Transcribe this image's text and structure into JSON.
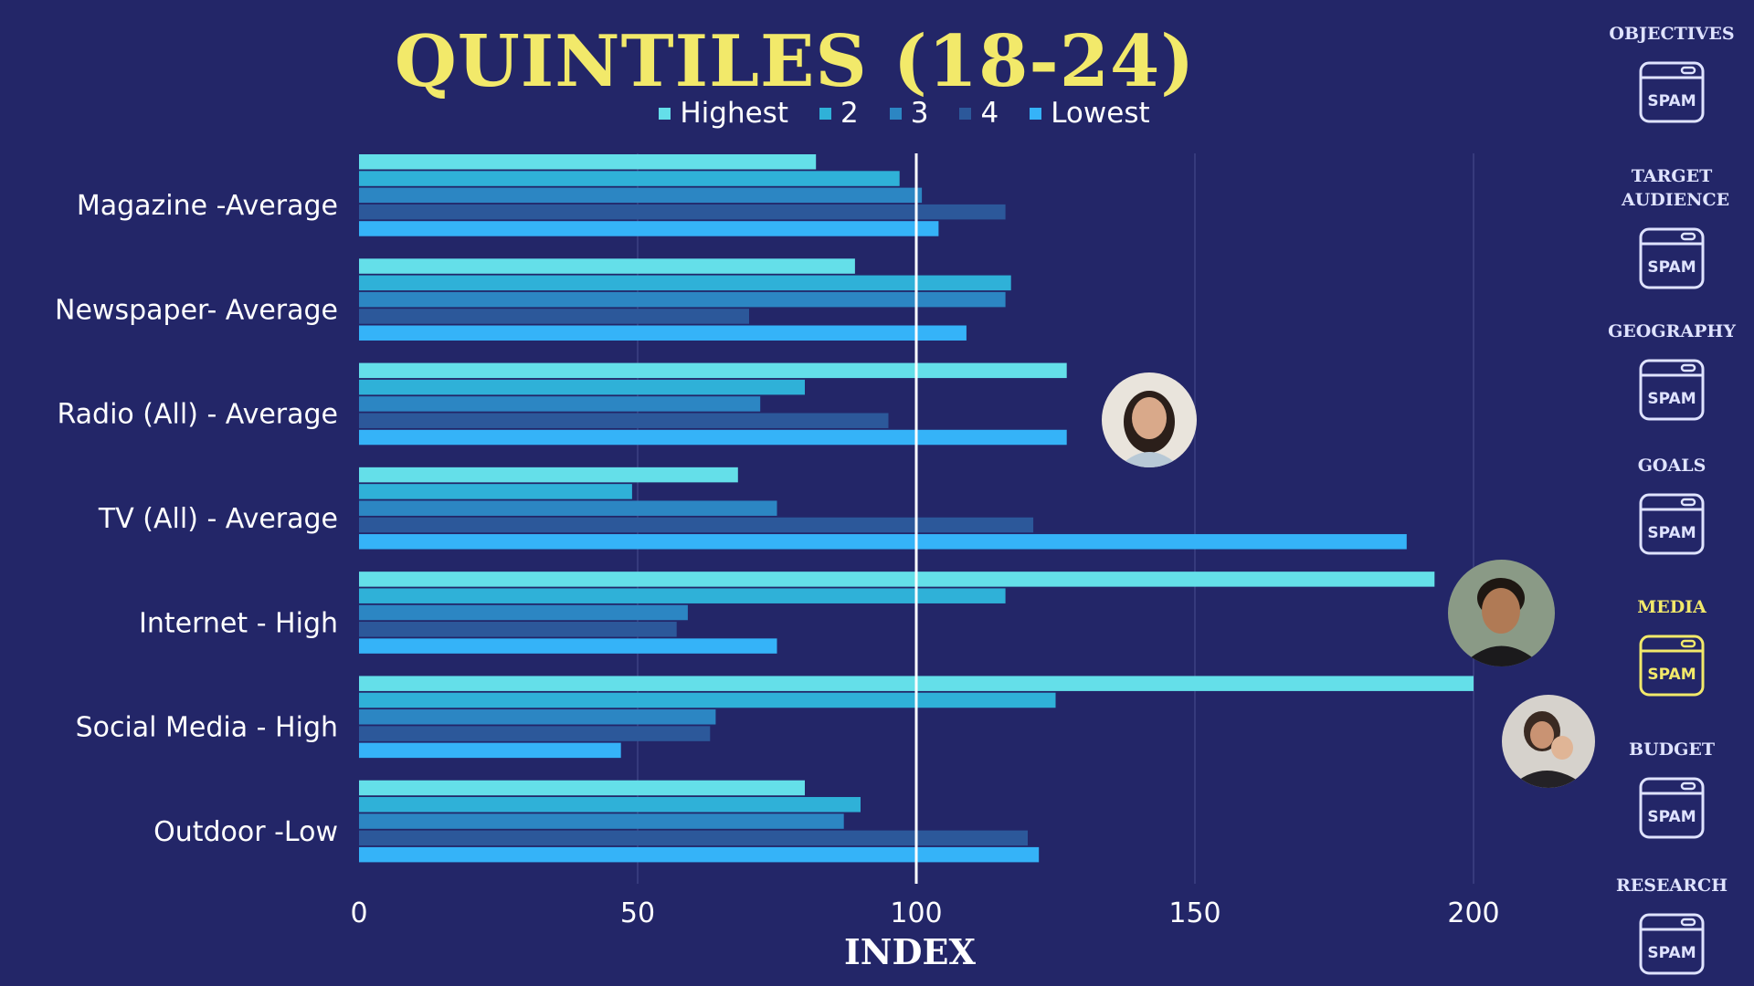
{
  "chart_data": {
    "type": "bar",
    "orientation": "horizontal",
    "title": "QUINTILES (18-24)",
    "xlabel": "INDEX",
    "ylabel": "",
    "xlim": [
      0,
      200
    ],
    "xticks": [
      0,
      50,
      100,
      150,
      200
    ],
    "reference_line": 100,
    "grid": "vertical",
    "legend_position": "top",
    "categories": [
      "Magazine -Average",
      "Newspaper- Average",
      "Radio (All) - Average",
      "TV (All) - Average",
      "Internet - High",
      "Social Media - High",
      "Outdoor -Low"
    ],
    "series": [
      {
        "name": "Highest",
        "color": "#64dfe9",
        "values": [
          82,
          89,
          127,
          68,
          193,
          200,
          80
        ]
      },
      {
        "name": "2",
        "color": "#2fb1d8",
        "values": [
          97,
          117,
          80,
          49,
          116,
          125,
          90
        ]
      },
      {
        "name": "3",
        "color": "#2c86c3",
        "values": [
          101,
          116,
          72,
          75,
          59,
          64,
          87
        ]
      },
      {
        "name": "4",
        "color": "#2c589a",
        "values": [
          116,
          70,
          95,
          121,
          57,
          63,
          120
        ]
      },
      {
        "name": "Lowest",
        "color": "#35b3f8",
        "values": [
          104,
          109,
          127,
          188,
          75,
          47,
          122
        ]
      }
    ]
  },
  "sidebar": {
    "accent_active": "#f2e96a",
    "accent_inactive": "#dfe3ff",
    "icon_text": "SPAM",
    "items": [
      {
        "label": "OBJECTIVES",
        "active": false
      },
      {
        "label": "TARGET AUDIENCE",
        "active": false
      },
      {
        "label": "GEOGRAPHY",
        "active": false
      },
      {
        "label": "GOALS",
        "active": false
      },
      {
        "label": "MEDIA",
        "active": true
      },
      {
        "label": "BUDGET",
        "active": false
      },
      {
        "label": "RESEARCH",
        "active": false
      }
    ]
  }
}
